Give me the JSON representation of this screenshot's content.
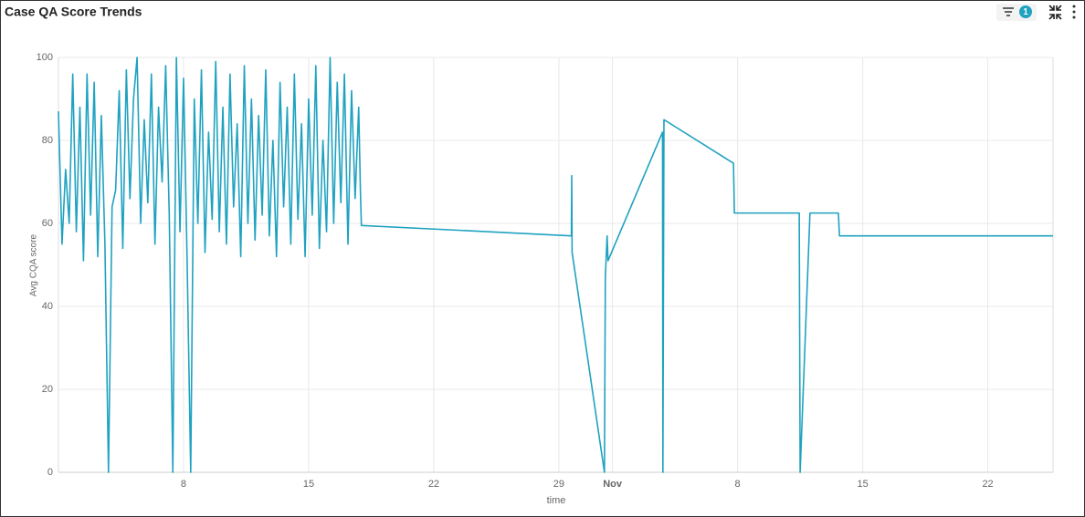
{
  "filter_badge": "1",
  "chart_data": {
    "type": "line",
    "title": "Case QA Score Trends",
    "x_label": "time",
    "y_label": "Avg CQA score",
    "x": [
      1.0,
      1.2,
      1.4,
      1.6,
      1.8,
      2.0,
      2.2,
      2.4,
      2.6,
      2.8,
      3.0,
      3.2,
      3.4,
      3.6,
      3.8,
      4.0,
      4.2,
      4.4,
      4.6,
      4.8,
      5.0,
      5.2,
      5.4,
      5.6,
      5.8,
      6.0,
      6.2,
      6.4,
      6.6,
      6.8,
      7.0,
      7.2,
      7.4,
      7.6,
      7.8,
      8.0,
      8.2,
      8.4,
      8.6,
      8.8,
      9.0,
      9.2,
      9.4,
      9.6,
      9.8,
      10.0,
      10.2,
      10.4,
      10.6,
      10.8,
      11.0,
      11.2,
      11.4,
      11.6,
      11.8,
      12.0,
      12.2,
      12.4,
      12.6,
      12.8,
      13.0,
      13.2,
      13.4,
      13.6,
      13.8,
      14.0,
      14.2,
      14.4,
      14.6,
      14.8,
      15.0,
      15.2,
      15.4,
      15.6,
      15.8,
      16.0,
      16.2,
      16.4,
      16.6,
      16.8,
      17.0,
      17.2,
      17.4,
      17.6,
      17.8,
      17.9,
      17.95,
      29.7,
      29.72,
      29.74,
      31.55,
      31.6,
      31.7,
      31.75,
      34.8,
      34.82,
      34.88,
      38.77,
      38.82,
      42.45,
      42.5,
      43.05,
      44.64,
      44.7,
      56.65
    ],
    "series": [
      {
        "name": "Avg CQA score",
        "color": "#1fa2c0",
        "values": [
          87,
          55,
          73,
          60,
          96,
          58,
          88,
          51,
          96,
          62,
          94,
          52,
          86,
          55,
          0,
          64,
          68,
          92,
          54,
          97,
          66,
          90,
          100,
          60,
          85,
          65,
          96,
          55,
          88,
          70,
          98,
          62,
          0,
          100,
          58,
          95,
          51,
          0,
          90,
          60,
          97,
          53,
          82,
          61,
          99,
          58,
          88,
          55,
          96,
          64,
          84,
          52,
          98,
          60,
          90,
          56,
          86,
          62,
          97,
          57,
          80,
          52,
          94,
          64,
          88,
          55,
          96,
          61,
          84,
          52,
          90,
          62,
          98,
          54,
          80,
          58,
          100,
          60,
          94,
          65,
          96,
          55,
          92,
          66,
          88,
          67,
          59.5,
          57,
          71.5,
          53,
          0,
          47,
          57,
          51,
          82,
          0,
          85,
          74.5,
          62.5,
          62.5,
          0,
          62.5,
          62.5,
          57,
          57
        ]
      }
    ],
    "xlim": [
      1,
      56.65
    ],
    "xticks": [
      8,
      15,
      22,
      29,
      {
        "value": 32,
        "label": "Nov"
      },
      {
        "value": 39,
        "label": "8"
      },
      {
        "value": 46,
        "label": "15"
      },
      {
        "value": 53,
        "label": "22"
      }
    ],
    "ylim": [
      0,
      100
    ],
    "yticks": [
      0,
      20,
      40,
      60,
      80,
      100
    ],
    "grid": true
  }
}
